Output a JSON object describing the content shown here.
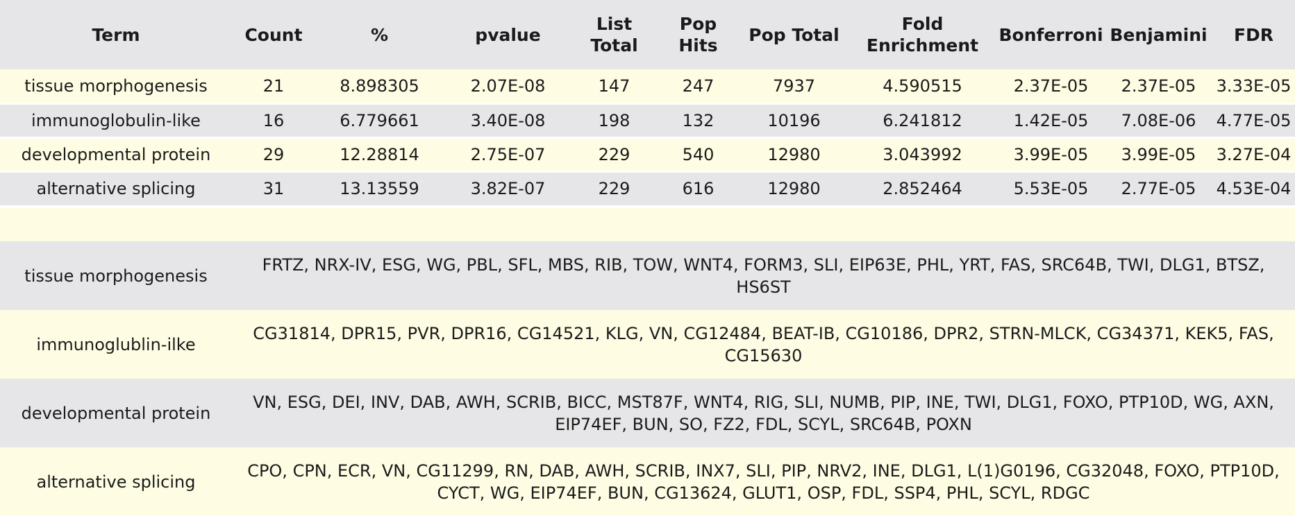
{
  "stats": {
    "headers": [
      "Term",
      "Count",
      "%",
      "pvalue",
      "List Total",
      "Pop Hits",
      "Pop Total",
      "Fold Enrichment",
      "Bonferroni",
      "Benjamini",
      "FDR"
    ],
    "rows": [
      [
        "tissue morphogenesis",
        "21",
        "8.898305",
        "2.07E-08",
        "147",
        "247",
        "7937",
        "4.590515",
        "2.37E-05",
        "2.37E-05",
        "3.33E-05"
      ],
      [
        "immunoglobulin-like",
        "16",
        "6.779661",
        "3.40E-08",
        "198",
        "132",
        "10196",
        "6.241812",
        "1.42E-05",
        "7.08E-06",
        "4.77E-05"
      ],
      [
        "developmental protein",
        "29",
        "12.28814",
        "2.75E-07",
        "229",
        "540",
        "12980",
        "3.043992",
        "3.99E-05",
        "3.99E-05",
        "3.27E-04"
      ],
      [
        "alternative splicing",
        "31",
        "13.13559",
        "3.82E-07",
        "229",
        "616",
        "12980",
        "2.852464",
        "5.53E-05",
        "2.77E-05",
        "4.53E-04"
      ]
    ]
  },
  "genes": {
    "rows": [
      [
        "tissue morphogenesis",
        "FRTZ, NRX-IV, ESG, WG, PBL, SFL, MBS, RIB, TOW, WNT4, FORM3, SLI, EIP63E, PHL, YRT, FAS, SRC64B, TWI, DLG1, BTSZ, HS6ST"
      ],
      [
        "immunoglublin-ilke",
        "CG31814, DPR15, PVR, DPR16, CG14521, KLG, VN, CG12484, BEAT-IB, CG10186, DPR2, STRN-MLCK, CG34371, KEK5, FAS, CG15630"
      ],
      [
        "developmental protein",
        "VN, ESG, DEI, INV, DAB, AWH, SCRIB, BICC, MST87F, WNT4, RIG, SLI, NUMB, PIP, INE, TWI, DLG1, FOXO, PTP10D, WG, AXN, EIP74EF, BUN, SO, FZ2, FDL, SCYL, SRC64B, POXN"
      ],
      [
        "alternative splicing",
        "CPO, CPN, ECR, VN, CG11299, RN, DAB, AWH, SCRIB, INX7, SLI, PIP, NRV2, INE, DLG1, L(1)G0196, CG32048, FOXO, PTP10D, CYCT, WG, EIP74EF, BUN, CG13624, GLUT1, OSP, FDL, SSP4, PHL, SCYL, RDGC"
      ]
    ]
  },
  "colors": {
    "header_bg": "#e6e6e8",
    "row_yellow": "#fefde3",
    "row_grey": "#e6e6e8"
  }
}
